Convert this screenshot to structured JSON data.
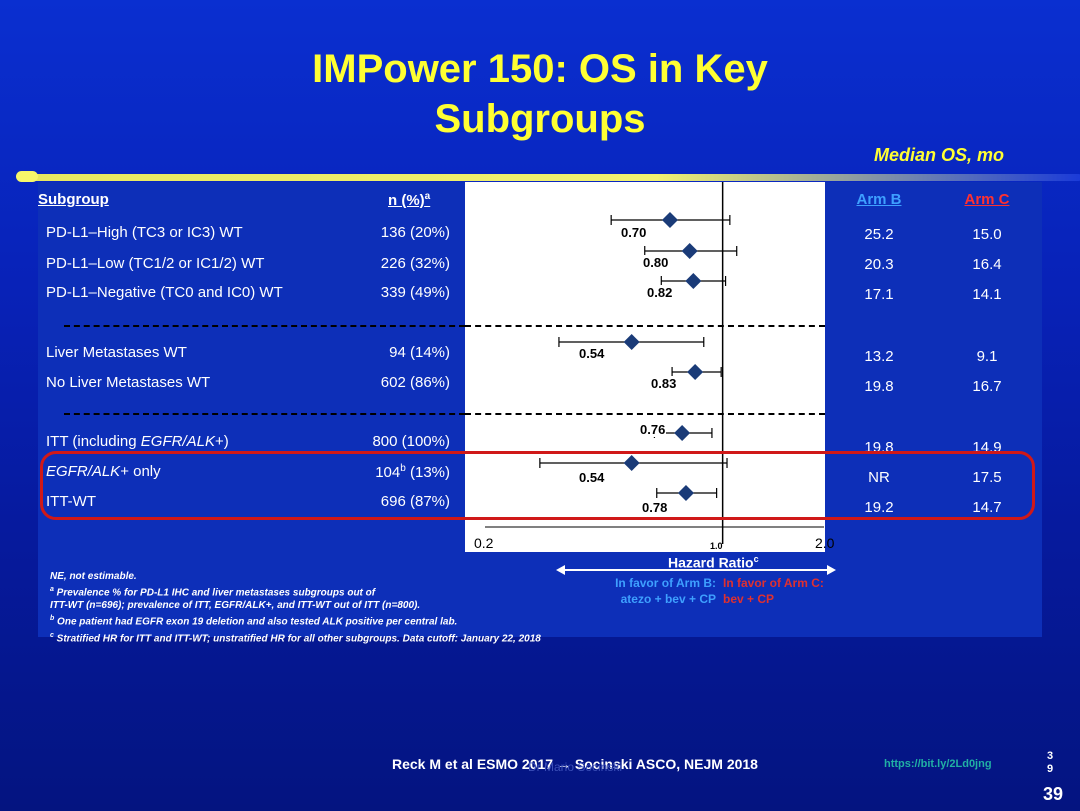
{
  "slide": {
    "title_line1": "IMPower 150:  OS in Key",
    "title_line2": "Subgroups",
    "median_os_label": "Median OS, mo"
  },
  "table": {
    "headers": {
      "subgroup": "Subgroup",
      "n": "n (%)",
      "n_sup": "a",
      "arm_b": "Arm B",
      "arm_c": "Arm C"
    },
    "rows": [
      {
        "label": "PD-L1–High (TC3 or IC3) WT",
        "n": "136 (20%)",
        "hr_label": "0.70",
        "arm_b": "25.2",
        "arm_c": "15.0"
      },
      {
        "label": "PD-L1–Low (TC1/2 or IC1/2) WT",
        "n": "226 (32%)",
        "hr_label": "0.80",
        "arm_b": "20.3",
        "arm_c": "16.4"
      },
      {
        "label": "PD-L1–Negative  (TC0 and IC0) WT",
        "n": "339 (49%)",
        "hr_label": "0.82",
        "arm_b": "17.1",
        "arm_c": "14.1"
      },
      {
        "label": "Liver Metastases WT",
        "n": "94 (14%)",
        "hr_label": "0.54",
        "arm_b": "13.2",
        "arm_c": "9.1"
      },
      {
        "label": "No Liver Metastases WT",
        "n": "602 (86%)",
        "hr_label": "0.83",
        "arm_b": "19.8",
        "arm_c": "16.7"
      },
      {
        "label_prefix": "ITT (including ",
        "label_italic": "EGFR/ALK",
        "label_suffix": "+)",
        "n": "800 (100%)",
        "hr_label": "0.76",
        "arm_b": "19.8",
        "arm_c": "14.9"
      },
      {
        "label_italic": "EGFR/ALK",
        "label_suffix": "+ only",
        "n_pre": "104",
        "n_sup": "b",
        "n_post": " (13%)",
        "hr_label": "0.54",
        "arm_b": "NR",
        "arm_c": "17.5"
      },
      {
        "label": "ITT-WT",
        "n": "696 (87%)",
        "hr_label": "0.78",
        "arm_b": "19.2",
        "arm_c": "14.7"
      }
    ]
  },
  "chart_data": {
    "type": "forest",
    "x_scale": "log",
    "xlim": [
      0.2,
      2.0
    ],
    "ticks": [
      "0.2",
      "1.0",
      "2.0"
    ],
    "reference_line": 1.0,
    "xlabel": "Hazard Ratio",
    "xlabel_sup": "c",
    "points": [
      {
        "hr": 0.7,
        "ci_low": 0.47,
        "ci_high": 1.05
      },
      {
        "hr": 0.8,
        "ci_low": 0.59,
        "ci_high": 1.1
      },
      {
        "hr": 0.82,
        "ci_low": 0.66,
        "ci_high": 1.02
      },
      {
        "hr": 0.54,
        "ci_low": 0.33,
        "ci_high": 0.88
      },
      {
        "hr": 0.83,
        "ci_low": 0.71,
        "ci_high": 0.99
      },
      {
        "hr": 0.76,
        "ci_low": 0.63,
        "ci_high": 0.93
      },
      {
        "hr": 0.54,
        "ci_low": 0.29,
        "ci_high": 1.03
      },
      {
        "hr": 0.78,
        "ci_low": 0.64,
        "ci_high": 0.96
      }
    ],
    "favor_left_line1": "In favor of Arm B:",
    "favor_left_line2": "atezo + bev + CP",
    "favor_right_line1": "In favor of Arm C:",
    "favor_right_line2": "bev + CP",
    "colors": {
      "marker": "#1a3b78",
      "favor_left": "#3ea0ff",
      "favor_right": "#e03030"
    }
  },
  "footnotes": {
    "line1": "NE, not estimable.",
    "line2_sup": "a",
    "line2": "  Prevalence % for PD-L1 IHC and liver metastases subgroups out of",
    "line3": "ITT-WT (n=696); prevalence of ITT,  EGFR/ALK+, and ITT-WT  out of ITT (n=800).",
    "line4_sup": "b",
    "line4": " One patient had EGFR exon 19 deletion and also tested ALK positive per central lab.",
    "line5_sup": "c",
    "line5": "  Stratified HR for ITT and ITT-WT;  unstratified HR for all other subgroups. Data cutoff:  January 22, 2018"
  },
  "footer": {
    "citation": "Reck M et al ESMO 2017 → Socinski ASCO, NEJM 2018",
    "watermark": "Dr Mario Socinski",
    "url": "https://bit.ly/2Ld0jng",
    "page_small_1": "3",
    "page_small_2": "9",
    "page_number": "39"
  }
}
